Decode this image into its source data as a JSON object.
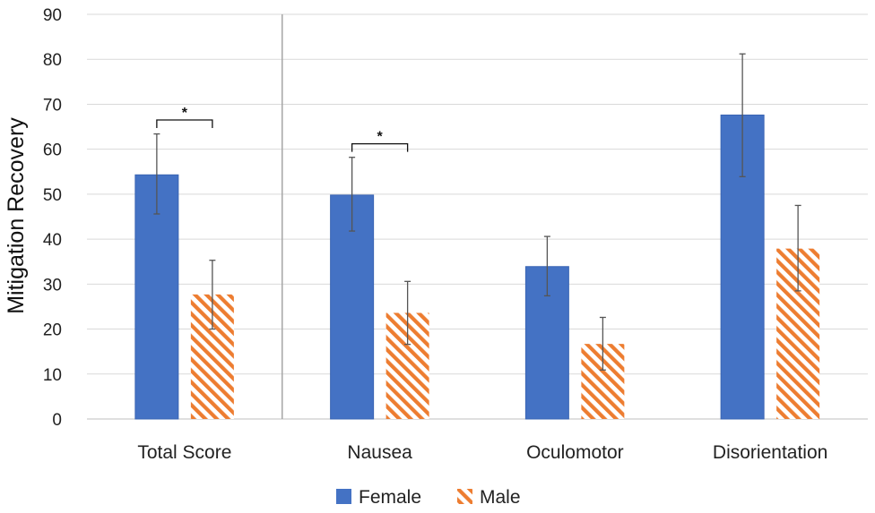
{
  "chart_data": {
    "type": "bar",
    "title": "",
    "xlabel": "",
    "ylabel": "Mitigation Recovery",
    "ylim": [
      0,
      90
    ],
    "yticks": [
      0,
      10,
      20,
      30,
      40,
      50,
      60,
      70,
      80,
      90
    ],
    "grid": true,
    "legend_position": "bottom-center",
    "categories": [
      "Total Score",
      "Nausea",
      "Oculomotor",
      "Disorientation"
    ],
    "series": [
      {
        "name": "Female",
        "pattern": "solid",
        "color": "#4472C4",
        "values": [
          54.3,
          49.8,
          33.9,
          67.6
        ],
        "error_low": [
          45.6,
          41.8,
          27.4,
          53.9
        ],
        "error_high": [
          63.4,
          58.2,
          40.6,
          81.2
        ]
      },
      {
        "name": "Male",
        "pattern": "diagonal-hatch",
        "color": "#ED7D31",
        "values": [
          27.7,
          23.6,
          16.7,
          37.9
        ],
        "error_low": [
          20.0,
          16.6,
          10.9,
          28.5
        ],
        "error_high": [
          35.3,
          30.6,
          22.6,
          47.5
        ]
      }
    ],
    "significance": [
      {
        "category": "Total Score",
        "label": "*",
        "y": 66.5
      },
      {
        "category": "Nausea",
        "label": "*",
        "y": 61.2
      }
    ],
    "separator_after_category": "Total Score"
  }
}
